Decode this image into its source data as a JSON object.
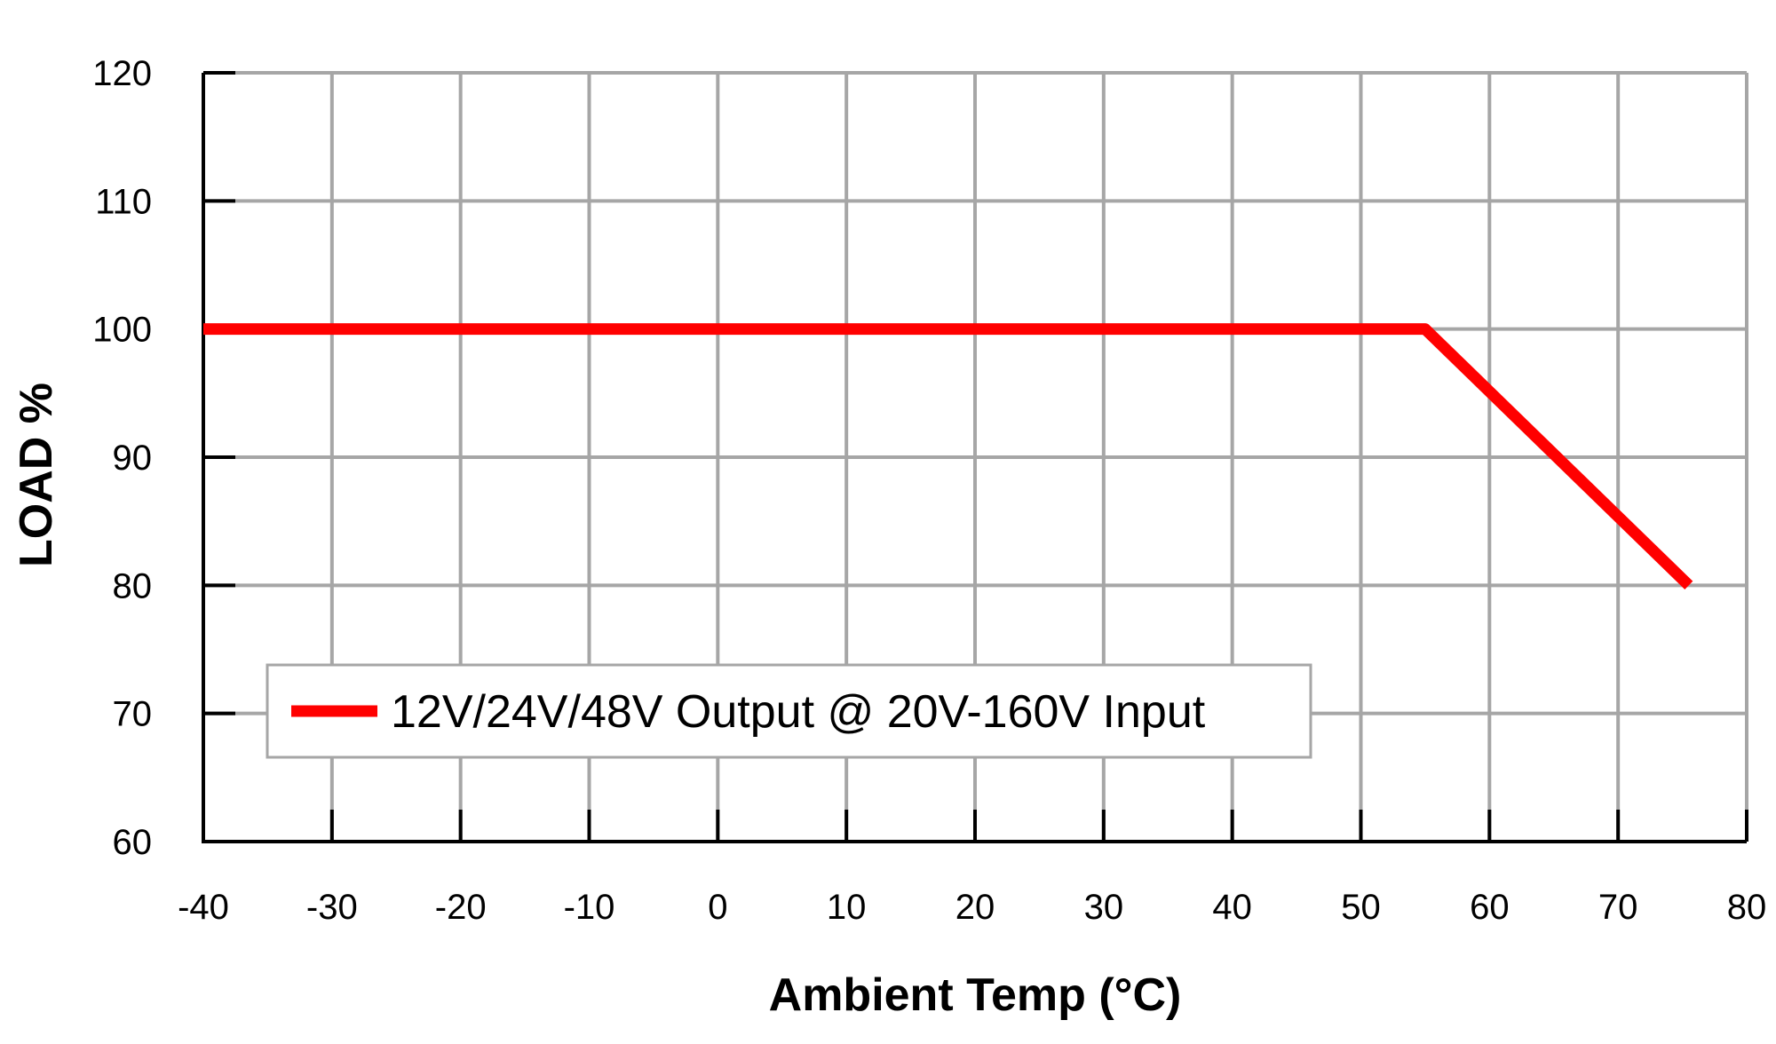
{
  "chart_data": {
    "type": "line",
    "xlabel": "Ambient Temp (°C)",
    "ylabel": "LOAD %",
    "xlim": [
      -40,
      80
    ],
    "ylim": [
      60,
      120
    ],
    "x_ticks": [
      -40,
      -30,
      -20,
      -10,
      0,
      10,
      20,
      30,
      40,
      50,
      60,
      70,
      80
    ],
    "y_ticks": [
      60,
      70,
      80,
      90,
      100,
      110,
      120
    ],
    "grid": true,
    "legend_position": "bottom-left",
    "series": [
      {
        "name": "12V/24V/48V Output @ 20V-160V Input",
        "color": "#ff0000",
        "x": [
          -40,
          55,
          75.5
        ],
        "y": [
          100,
          100,
          80
        ]
      }
    ]
  }
}
